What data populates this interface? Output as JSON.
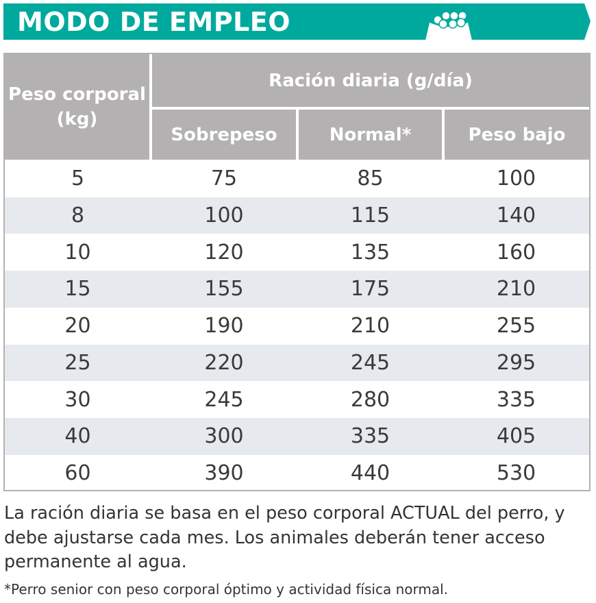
{
  "banner": {
    "title": "MODO DE EMPLEO",
    "icon": "food-bowl-icon",
    "color": "#00a99d"
  },
  "table": {
    "header_color": "#b3b1b2",
    "alt_row_color": "#e6e9ed",
    "col_weight": "Peso corporal (kg)",
    "group_header": "Ración diaria (g/día)",
    "columns": [
      "Sobrepeso",
      "Normal*",
      "Peso bajo"
    ],
    "rows": [
      [
        "5",
        "75",
        "85",
        "100"
      ],
      [
        "8",
        "100",
        "115",
        "140"
      ],
      [
        "10",
        "120",
        "135",
        "160"
      ],
      [
        "15",
        "155",
        "175",
        "210"
      ],
      [
        "20",
        "190",
        "210",
        "255"
      ],
      [
        "25",
        "220",
        "245",
        "295"
      ],
      [
        "30",
        "245",
        "280",
        "335"
      ],
      [
        "40",
        "300",
        "335",
        "405"
      ],
      [
        "60",
        "390",
        "440",
        "530"
      ]
    ]
  },
  "note": "La ración diaria se basa en el peso corporal ACTUAL del perro, y debe ajustarse cada mes. Los animales deberán tener acceso permanente al agua.",
  "footnote": "*Perro senior con peso corporal óptimo y actividad física normal."
}
